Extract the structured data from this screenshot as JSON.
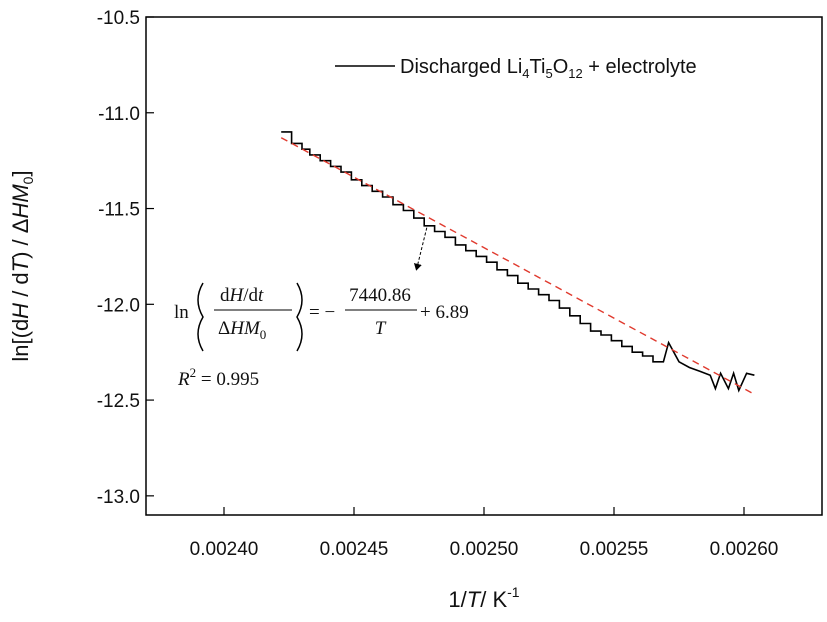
{
  "chart_data": {
    "type": "line",
    "xlabel_parts": [
      "1/",
      "T",
      "/ K",
      "-1"
    ],
    "ylabel_parts": [
      "ln[(d",
      "H",
      " / d",
      "T",
      ") / Δ",
      "HM",
      "0",
      "]"
    ],
    "xlim": [
      0.00237,
      0.00263
    ],
    "ylim": [
      -13.1,
      -10.5
    ],
    "x_ticks": [
      0.0024,
      0.00245,
      0.0025,
      0.00255,
      0.0026
    ],
    "x_tick_labels": [
      "0.00240",
      "0.00245",
      "0.00250",
      "0.00255",
      "0.00260"
    ],
    "y_ticks": [
      -10.5,
      -11.0,
      -11.5,
      -12.0,
      -12.5,
      -13.0
    ],
    "y_tick_labels": [
      "-10.5",
      "-11.0",
      "-11.5",
      "-12.0",
      "-12.5",
      "-13.0"
    ],
    "legend_position": "top-right",
    "legend": {
      "parts": [
        "Discharged Li",
        "4",
        "Ti",
        "5",
        "O",
        "12",
        " + electrolyte"
      ]
    },
    "series": [
      {
        "name": "Discharged Li4Ti5O12 + electrolyte",
        "style": "solid",
        "color": "#000000",
        "x": [
          0.002422,
          0.002426,
          0.002426,
          0.00243,
          0.00243,
          0.002433,
          0.002433,
          0.002437,
          0.002437,
          0.002441,
          0.002441,
          0.002445,
          0.002445,
          0.002449,
          0.002449,
          0.002453,
          0.002453,
          0.002457,
          0.002457,
          0.002461,
          0.002461,
          0.002465,
          0.002465,
          0.002469,
          0.002469,
          0.002473,
          0.002473,
          0.002477,
          0.002477,
          0.002481,
          0.002481,
          0.002485,
          0.002485,
          0.002489,
          0.002489,
          0.002493,
          0.002493,
          0.002497,
          0.002497,
          0.002501,
          0.002501,
          0.002505,
          0.002505,
          0.002509,
          0.002509,
          0.002513,
          0.002513,
          0.002517,
          0.002517,
          0.002521,
          0.002521,
          0.002525,
          0.002525,
          0.002529,
          0.002529,
          0.002533,
          0.002533,
          0.002537,
          0.002537,
          0.002541,
          0.002541,
          0.002545,
          0.002545,
          0.002549,
          0.002549,
          0.002553,
          0.002553,
          0.002557,
          0.002557,
          0.002561,
          0.002561,
          0.002565,
          0.002565,
          0.002569,
          0.002569,
          0.002571,
          0.002571,
          0.002575,
          0.002575,
          0.002579,
          0.002579,
          0.002583,
          0.002583,
          0.002587,
          0.002587,
          0.002589,
          0.002589,
          0.002591,
          0.002591,
          0.002594,
          0.002594,
          0.002596,
          0.002596,
          0.002598,
          0.002598,
          0.002601,
          0.002601,
          0.002604
        ],
        "y": [
          -11.1,
          -11.1,
          -11.16,
          -11.16,
          -11.19,
          -11.19,
          -11.22,
          -11.22,
          -11.25,
          -11.25,
          -11.28,
          -11.28,
          -11.31,
          -11.31,
          -11.35,
          -11.35,
          -11.38,
          -11.38,
          -11.41,
          -11.41,
          -11.44,
          -11.44,
          -11.48,
          -11.48,
          -11.51,
          -11.51,
          -11.55,
          -11.55,
          -11.59,
          -11.59,
          -11.62,
          -11.62,
          -11.65,
          -11.65,
          -11.69,
          -11.69,
          -11.72,
          -11.72,
          -11.75,
          -11.75,
          -11.78,
          -11.78,
          -11.82,
          -11.82,
          -11.85,
          -11.85,
          -11.89,
          -11.89,
          -11.92,
          -11.92,
          -11.95,
          -11.95,
          -11.98,
          -11.98,
          -12.02,
          -12.02,
          -12.06,
          -12.06,
          -12.1,
          -12.1,
          -12.14,
          -12.14,
          -12.16,
          -12.16,
          -12.19,
          -12.19,
          -12.22,
          -12.22,
          -12.25,
          -12.25,
          -12.27,
          -12.27,
          -12.3,
          -12.3,
          -12.3,
          -12.2,
          -12.2,
          -12.3,
          -12.3,
          -12.33,
          -12.33,
          -12.35,
          -12.35,
          -12.37,
          -12.37,
          -12.44,
          -12.44,
          -12.36,
          -12.36,
          -12.44,
          -12.44,
          -12.36,
          -12.36,
          -12.45,
          -12.45,
          -12.36,
          -12.36,
          -12.37
        ]
      },
      {
        "name": "",
        "style": "dashed",
        "color": "#e03a2e",
        "x": [
          0.002422,
          0.002604
        ],
        "y": [
          -11.13,
          -12.47
        ]
      }
    ],
    "annotation": {
      "fit_equation_ln": "ln",
      "fit_equation_num_parts": [
        "d",
        "H",
        "/d",
        "t"
      ],
      "fit_equation_den_parts": [
        "Δ",
        "HM",
        "0"
      ],
      "fit_equation_rhs_parts": [
        "= −",
        "7440.86",
        "T",
        "+ 6.89"
      ],
      "r_squared_parts": [
        "R",
        "2",
        " = 0.995"
      ],
      "arrow_from": [
        0.002478,
        -11.6
      ],
      "arrow_to": [
        0.002474,
        -11.82
      ]
    }
  }
}
